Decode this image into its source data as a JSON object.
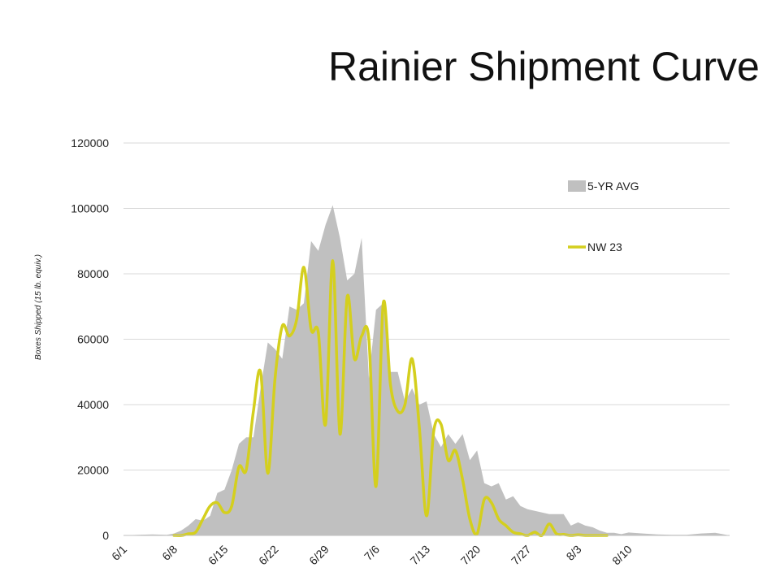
{
  "slide": {
    "title": "Rainier Shipment Curve"
  },
  "chart_data": {
    "type": "area",
    "title": "Rainier Shipment Curve",
    "xlabel": "",
    "ylabel": "Boxes Shipped (15 lb. equiv.)",
    "ylim": [
      0,
      120000
    ],
    "y_ticks": [
      0,
      20000,
      40000,
      60000,
      80000,
      100000,
      120000
    ],
    "x_range": [
      "6/1",
      "8/24"
    ],
    "x_ticks": [
      "6/1",
      "6/8",
      "6/15",
      "6/22",
      "6/29",
      "7/6",
      "7/13",
      "7/20",
      "7/27",
      "8/3",
      "8/10"
    ],
    "grid": true,
    "legend_placement": "top-right",
    "colors": {
      "five_yr_avg": "#c0c0c0",
      "nw23": "#d4cf1e",
      "grid": "#d9d9d9"
    },
    "series": [
      {
        "name": "5-YR AVG",
        "kind": "area",
        "x": [
          "6/1",
          "6/3",
          "6/5",
          "6/7",
          "6/8",
          "6/9",
          "6/10",
          "6/11",
          "6/12",
          "6/13",
          "6/14",
          "6/15",
          "6/16",
          "6/17",
          "6/18",
          "6/19",
          "6/20",
          "6/21",
          "6/22",
          "6/23",
          "6/24",
          "6/25",
          "6/26",
          "6/27",
          "6/28",
          "6/29",
          "6/30",
          "7/1",
          "7/2",
          "7/3",
          "7/4",
          "7/5",
          "7/6",
          "7/7",
          "7/8",
          "7/9",
          "7/10",
          "7/11",
          "7/12",
          "7/13",
          "7/14",
          "7/15",
          "7/16",
          "7/17",
          "7/18",
          "7/19",
          "7/20",
          "7/21",
          "7/22",
          "7/23",
          "7/24",
          "7/25",
          "7/26",
          "7/27",
          "7/28",
          "7/29",
          "7/30",
          "7/31",
          "8/1",
          "8/2",
          "8/3",
          "8/4",
          "8/5",
          "8/6",
          "8/7",
          "8/8",
          "8/9",
          "8/10",
          "8/12",
          "8/14",
          "8/16",
          "8/18",
          "8/20",
          "8/22",
          "8/24"
        ],
        "values": [
          0,
          200,
          300,
          200,
          600,
          1500,
          3000,
          5000,
          4500,
          6000,
          13000,
          14000,
          20000,
          28000,
          30000,
          30000,
          45000,
          59000,
          57000,
          54000,
          70000,
          69000,
          71000,
          90000,
          87000,
          95000,
          101000,
          91000,
          78000,
          80000,
          91000,
          48000,
          69000,
          71000,
          50000,
          50000,
          41000,
          45000,
          40000,
          41000,
          31000,
          27000,
          31000,
          28000,
          31000,
          23000,
          26000,
          16000,
          15000,
          16000,
          11000,
          12000,
          9000,
          8000,
          7500,
          7000,
          6500,
          6500,
          6500,
          3000,
          4000,
          3000,
          2500,
          1500,
          800,
          800,
          400,
          900,
          600,
          300,
          200,
          200,
          600,
          800,
          0
        ]
      },
      {
        "name": "NW 23",
        "kind": "line",
        "x": [
          "6/8",
          "6/9",
          "6/10",
          "6/11",
          "6/12",
          "6/13",
          "6/14",
          "6/15",
          "6/16",
          "6/17",
          "6/18",
          "6/19",
          "6/20",
          "6/21",
          "6/22",
          "6/23",
          "6/24",
          "6/25",
          "6/26",
          "6/27",
          "6/28",
          "6/29",
          "6/30",
          "7/1",
          "7/2",
          "7/3",
          "7/4",
          "7/5",
          "7/6",
          "7/7",
          "7/8",
          "7/9",
          "7/10",
          "7/11",
          "7/12",
          "7/13",
          "7/14",
          "7/15",
          "7/16",
          "7/17",
          "7/18",
          "7/19",
          "7/20",
          "7/21",
          "7/22",
          "7/23",
          "7/24",
          "7/25",
          "7/26",
          "7/27",
          "7/28",
          "7/29",
          "7/30",
          "7/31",
          "8/1",
          "8/2",
          "8/3",
          "8/4",
          "8/5",
          "8/6",
          "8/7"
        ],
        "values": [
          0,
          0,
          500,
          1000,
          5000,
          9000,
          10000,
          7000,
          9000,
          21000,
          20000,
          38000,
          50000,
          19000,
          48000,
          64000,
          61000,
          66000,
          82000,
          63000,
          62000,
          34000,
          84000,
          31000,
          73000,
          54000,
          61000,
          60000,
          15000,
          71000,
          46000,
          38000,
          40000,
          54000,
          33000,
          6000,
          32000,
          34000,
          23000,
          26000,
          17000,
          5000,
          500,
          11000,
          10000,
          5000,
          3000,
          1000,
          500,
          0,
          1000,
          0,
          3500,
          500,
          300,
          0,
          200,
          0,
          0,
          0,
          0
        ]
      }
    ]
  }
}
